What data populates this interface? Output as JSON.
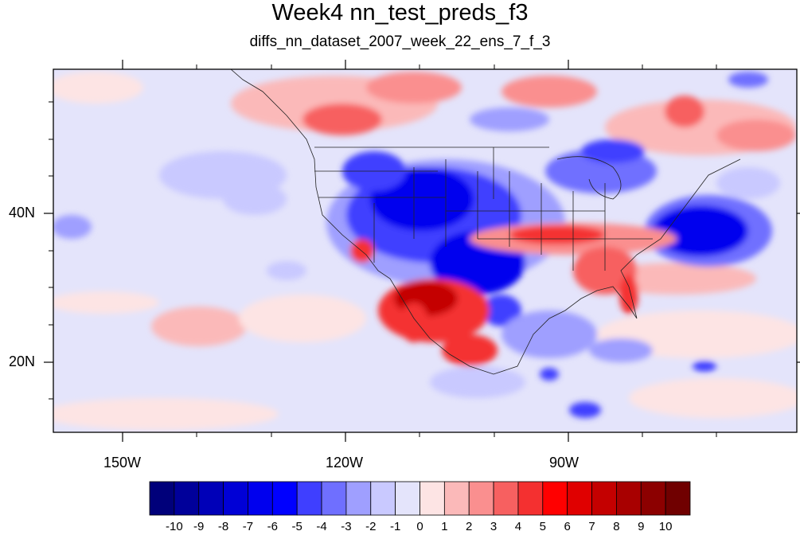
{
  "title": "Week4 nn_test_preds_f3",
  "subtitle": "diffs_nn_dataset_2007_week_22_ens_7_f_3",
  "lon_ticks": [
    "150W",
    "120W",
    "90W"
  ],
  "lat_ticks": [
    "40N",
    "20N"
  ],
  "colorbar": {
    "labels": [
      "-10",
      "-9",
      "-8",
      "-7",
      "-6",
      "-5",
      "-4",
      "-3",
      "-2",
      "-1",
      "0",
      "1",
      "2",
      "3",
      "4",
      "5",
      "6",
      "7",
      "8",
      "9",
      "10"
    ],
    "colors": [
      "#00007a",
      "#00009a",
      "#0000b8",
      "#0000d6",
      "#0000ee",
      "#0000ff",
      "#3f3fff",
      "#6f6fff",
      "#9f9fff",
      "#c9c9ff",
      "#e4e4fb",
      "#fde4e4",
      "#fbb9b9",
      "#fa8f8f",
      "#f76060",
      "#f43030",
      "#ff0000",
      "#e00000",
      "#c40000",
      "#a80000",
      "#8c0000",
      "#700000"
    ]
  }
}
